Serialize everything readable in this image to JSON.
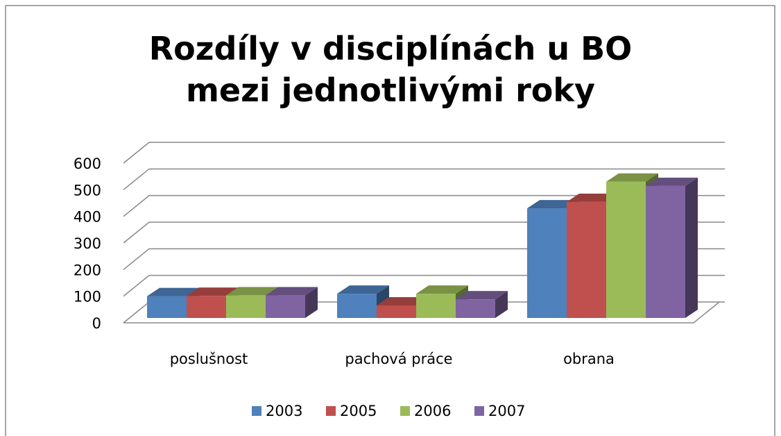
{
  "chart_data": {
    "type": "bar3d",
    "title": "Rozdíly v disciplínách u BO mezi jednotlivými roky",
    "categories": [
      "poslušnost",
      "pachová práce",
      "obrana"
    ],
    "series": [
      {
        "name": "2003",
        "color": "#4f81bd",
        "values": [
          82,
          91,
          412
        ]
      },
      {
        "name": "2005",
        "color": "#c0504d",
        "values": [
          83,
          47,
          436
        ]
      },
      {
        "name": "2006",
        "color": "#9bbb59",
        "values": [
          85,
          91,
          512
        ]
      },
      {
        "name": "2007",
        "color": "#8064a2",
        "values": [
          85,
          70,
          496
        ]
      }
    ],
    "ylim": [
      0,
      600
    ],
    "yticks": [
      0,
      100,
      200,
      300,
      400,
      500,
      600
    ],
    "grid": true,
    "legend": "bottom"
  }
}
